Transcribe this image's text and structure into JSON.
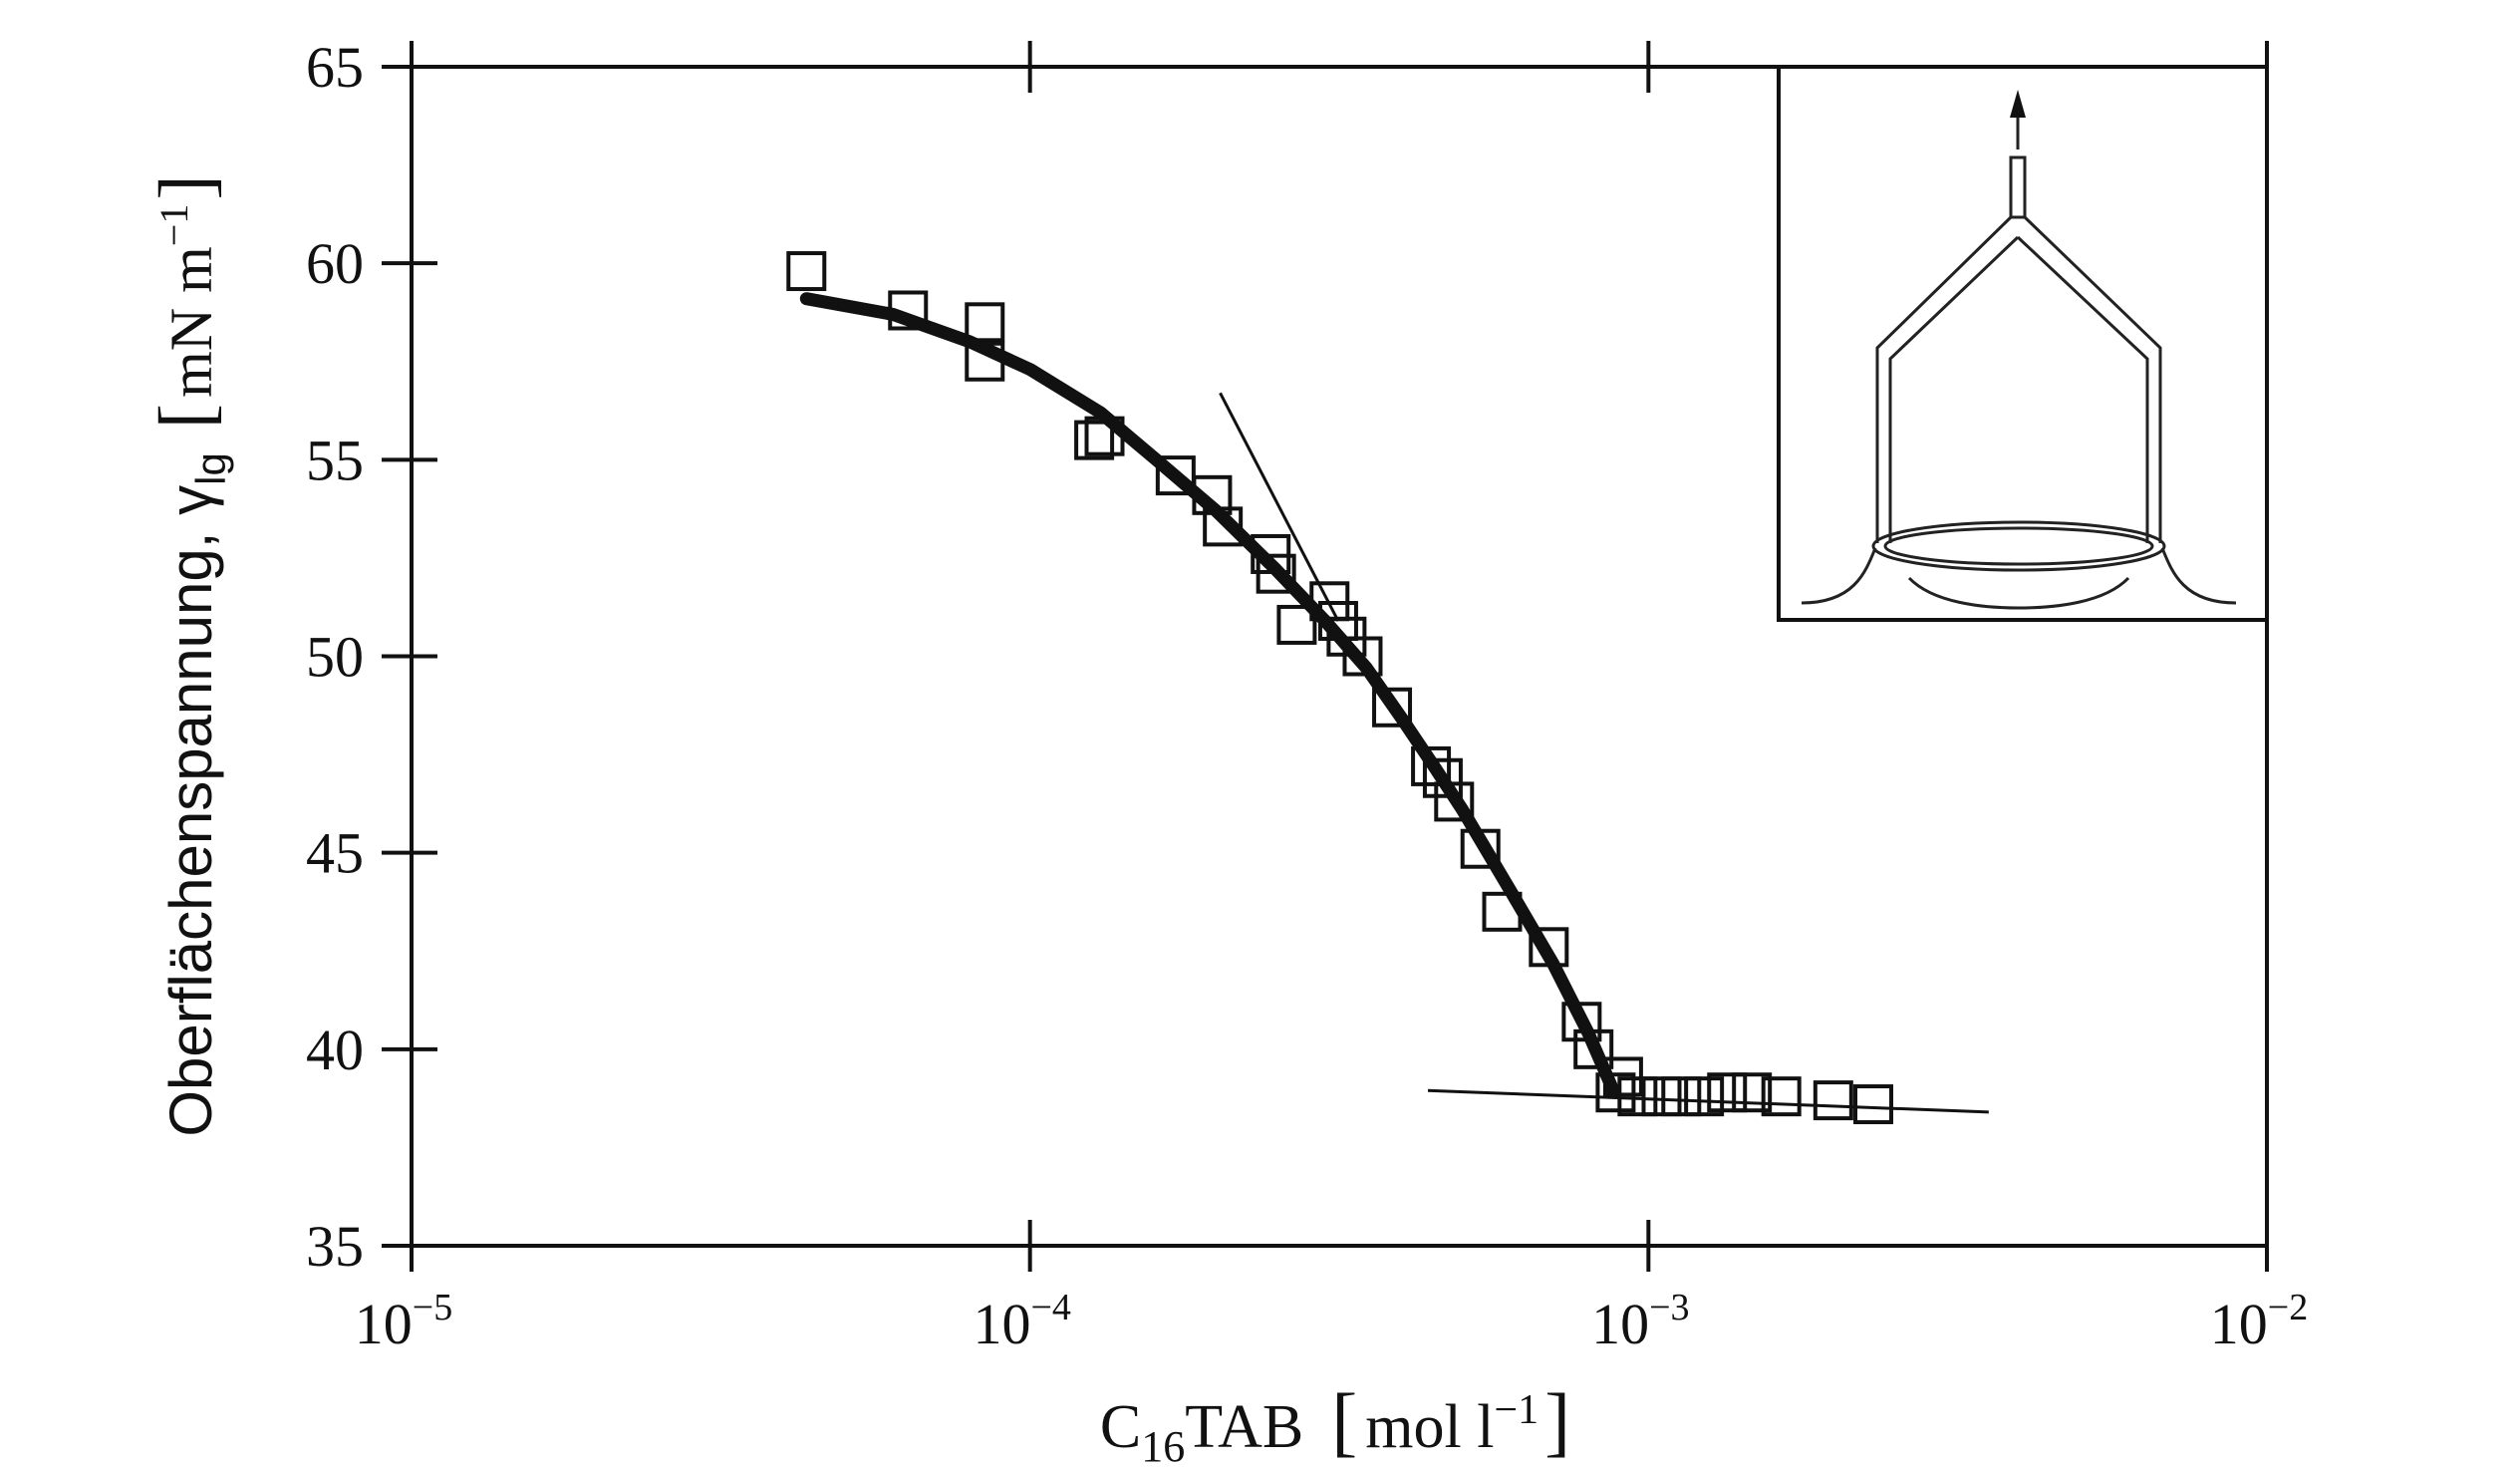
{
  "chart_data": {
    "type": "scatter",
    "x_scale": "log",
    "xlim": [
      1e-05,
      0.01
    ],
    "ylim": [
      35,
      65
    ],
    "x_ticks": [
      1e-05,
      0.0001,
      0.001,
      0.01
    ],
    "x_tick_labels": [
      {
        "base": "10",
        "exp": "−5"
      },
      {
        "base": "10",
        "exp": "−4"
      },
      {
        "base": "10",
        "exp": "−3"
      },
      {
        "base": "10",
        "exp": "−2"
      }
    ],
    "y_ticks": [
      35,
      40,
      45,
      50,
      55,
      60,
      65
    ],
    "y_tick_labels": [
      "35",
      "40",
      "45",
      "50",
      "55",
      "60",
      "65"
    ],
    "xlabel": {
      "main": "C",
      "sub": "16",
      "main2": "TAB",
      "unit_open": "[",
      "unit": "mol l",
      "unit_exp": "−1",
      "unit_close": "]"
    },
    "ylabel": {
      "text": "Oberflächenspannung, γ",
      "sub": "lg",
      "unit_open": "[",
      "unit": "mN m",
      "unit_exp": "−1",
      "unit_close": "]"
    },
    "grid": false,
    "legend": "none",
    "points": [
      {
        "x": 4.35e-05,
        "y": 59.8
      },
      {
        "x": 6.35e-05,
        "y": 58.8
      },
      {
        "x": 8.45e-05,
        "y": 58.5
      },
      {
        "x": 8.45e-05,
        "y": 57.5
      },
      {
        "x": 0.000127,
        "y": 55.5
      },
      {
        "x": 0.000132,
        "y": 55.6
      },
      {
        "x": 0.000172,
        "y": 54.6
      },
      {
        "x": 0.000197,
        "y": 54.1
      },
      {
        "x": 0.000205,
        "y": 53.3
      },
      {
        "x": 0.000245,
        "y": 52.6
      },
      {
        "x": 0.00025,
        "y": 52.1
      },
      {
        "x": 0.00027,
        "y": 50.8
      },
      {
        "x": 0.000305,
        "y": 51.4
      },
      {
        "x": 0.000315,
        "y": 50.9
      },
      {
        "x": 0.000325,
        "y": 50.5
      },
      {
        "x": 0.000345,
        "y": 50.0
      },
      {
        "x": 0.000385,
        "y": 48.7
      },
      {
        "x": 0.000445,
        "y": 47.2
      },
      {
        "x": 0.000465,
        "y": 46.9
      },
      {
        "x": 0.000485,
        "y": 46.3
      },
      {
        "x": 0.000535,
        "y": 45.1
      },
      {
        "x": 0.00058,
        "y": 43.5
      },
      {
        "x": 0.00069,
        "y": 42.6
      },
      {
        "x": 0.00078,
        "y": 40.7
      },
      {
        "x": 0.000815,
        "y": 40.0
      },
      {
        "x": 0.000885,
        "y": 38.9
      },
      {
        "x": 0.00091,
        "y": 39.3
      },
      {
        "x": 0.00096,
        "y": 38.8
      },
      {
        "x": 0.00105,
        "y": 38.8
      },
      {
        "x": 0.00113,
        "y": 38.8
      },
      {
        "x": 0.00123,
        "y": 38.8
      },
      {
        "x": 0.00134,
        "y": 38.9
      },
      {
        "x": 0.00147,
        "y": 38.9
      },
      {
        "x": 0.00164,
        "y": 38.8
      },
      {
        "x": 0.00199,
        "y": 38.7
      },
      {
        "x": 0.00231,
        "y": 38.6
      }
    ],
    "fit_curve": [
      [
        4.35e-05,
        59.1
      ],
      [
        6e-05,
        58.7
      ],
      [
        8e-05,
        58.0
      ],
      [
        0.0001,
        57.3
      ],
      [
        0.00013,
        56.2
      ],
      [
        0.00016,
        55.0
      ],
      [
        0.0002,
        53.7
      ],
      [
        0.00025,
        52.2
      ],
      [
        0.0003,
        50.9
      ],
      [
        0.00035,
        49.7
      ],
      [
        0.0004,
        48.4
      ],
      [
        0.00045,
        47.2
      ],
      [
        0.0005,
        46.1
      ],
      [
        0.0006,
        44.0
      ],
      [
        0.0007,
        42.2
      ],
      [
        0.0008,
        40.4
      ],
      [
        0.00088,
        38.9
      ]
    ],
    "tangent_lines": [
      [
        [
          0.000203,
          56.7
        ],
        [
          0.000315,
          50.9
        ]
      ],
      [
        [
          0.00044,
          38.95
        ],
        [
          0.00355,
          38.4
        ]
      ]
    ]
  }
}
